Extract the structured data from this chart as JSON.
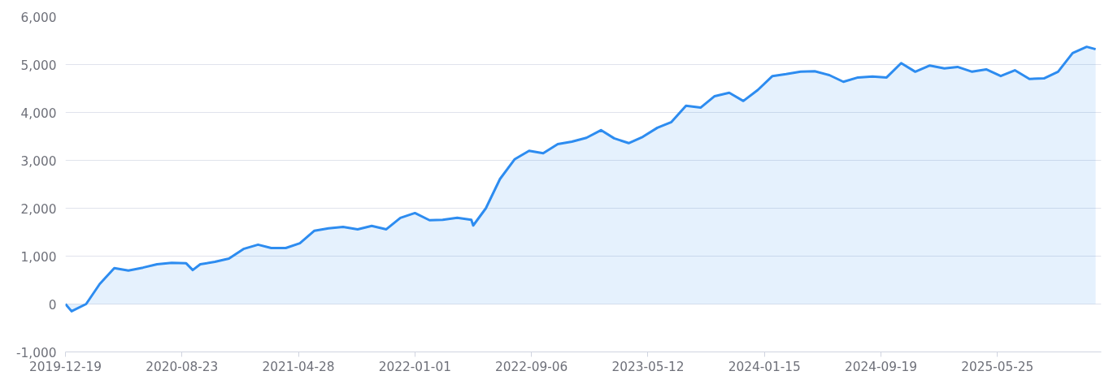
{
  "chart_data": {
    "type": "area",
    "x": [
      "2019-12-19",
      "2020-01-01",
      "2020-02-01",
      "2020-03-01",
      "2020-04-01",
      "2020-05-01",
      "2020-06-01",
      "2020-07-01",
      "2020-08-01",
      "2020-09-01",
      "2020-09-15",
      "2020-10-01",
      "2020-11-01",
      "2020-12-01",
      "2021-01-01",
      "2021-02-01",
      "2021-03-01",
      "2021-04-01",
      "2021-05-01",
      "2021-06-01",
      "2021-07-01",
      "2021-08-01",
      "2021-09-01",
      "2021-10-01",
      "2021-11-01",
      "2021-12-01",
      "2022-01-01",
      "2022-02-01",
      "2022-03-01",
      "2022-04-01",
      "2022-05-01",
      "2022-05-05",
      "2022-06-01",
      "2022-07-01",
      "2022-08-01",
      "2022-09-01",
      "2022-10-01",
      "2022-11-01",
      "2022-12-01",
      "2023-01-01",
      "2023-02-01",
      "2023-03-01",
      "2023-04-01",
      "2023-05-01",
      "2023-06-01",
      "2023-07-01",
      "2023-08-01",
      "2023-09-01",
      "2023-10-01",
      "2023-11-01",
      "2023-12-01",
      "2024-01-01",
      "2024-02-01",
      "2024-03-01",
      "2024-04-01",
      "2024-05-01",
      "2024-06-01",
      "2024-07-01",
      "2024-08-01",
      "2024-09-01",
      "2024-10-01",
      "2024-11-01",
      "2024-12-01",
      "2025-01-01",
      "2025-02-01",
      "2025-03-01",
      "2025-04-01",
      "2025-05-01",
      "2025-06-01",
      "2025-07-01",
      "2025-08-01",
      "2025-09-01",
      "2025-10-01",
      "2025-11-01",
      "2025-12-01",
      "2025-12-20"
    ],
    "series": [
      {
        "color": "#2d8cf0",
        "values": [
          0,
          -150,
          0,
          420,
          750,
          700,
          760,
          830,
          860,
          850,
          710,
          830,
          880,
          950,
          1150,
          1240,
          1170,
          1170,
          1270,
          1530,
          1580,
          1610,
          1560,
          1630,
          1560,
          1800,
          1900,
          1750,
          1760,
          1800,
          1760,
          1640,
          2000,
          2610,
          3020,
          3200,
          3150,
          3340,
          3390,
          3470,
          3630,
          3460,
          3360,
          3490,
          3680,
          3800,
          4140,
          4100,
          4340,
          4410,
          4240,
          4470,
          4760,
          4800,
          4850,
          4860,
          4780,
          4640,
          4730,
          4750,
          4730,
          5030,
          4850,
          4980,
          4920,
          4950,
          4850,
          4900,
          4760,
          4880,
          4700,
          4710,
          4850,
          5240,
          5370,
          5320
        ]
      }
    ],
    "xlim": [
      "2019-12-19",
      "2026-01-01"
    ],
    "xticks": [
      "2019-12-19",
      "2020-08-23",
      "2021-04-28",
      "2022-01-01",
      "2022-09-06",
      "2023-05-12",
      "2024-01-15",
      "2024-09-19",
      "2025-05-25"
    ],
    "ylim": [
      -1000,
      6000
    ],
    "yticks": [
      {
        "value": -1000,
        "label": "-1,000"
      },
      0,
      {
        "value": 1000,
        "label": "1,000"
      },
      {
        "value": 2000,
        "label": "2,000"
      },
      {
        "value": 3000,
        "label": "3,000"
      },
      {
        "value": 4000,
        "label": "4,000"
      },
      {
        "value": 5000,
        "label": "5,000"
      },
      {
        "value": 6000,
        "label": "6,000"
      }
    ],
    "grid": "y",
    "marker": "none",
    "line_style": "solid"
  }
}
